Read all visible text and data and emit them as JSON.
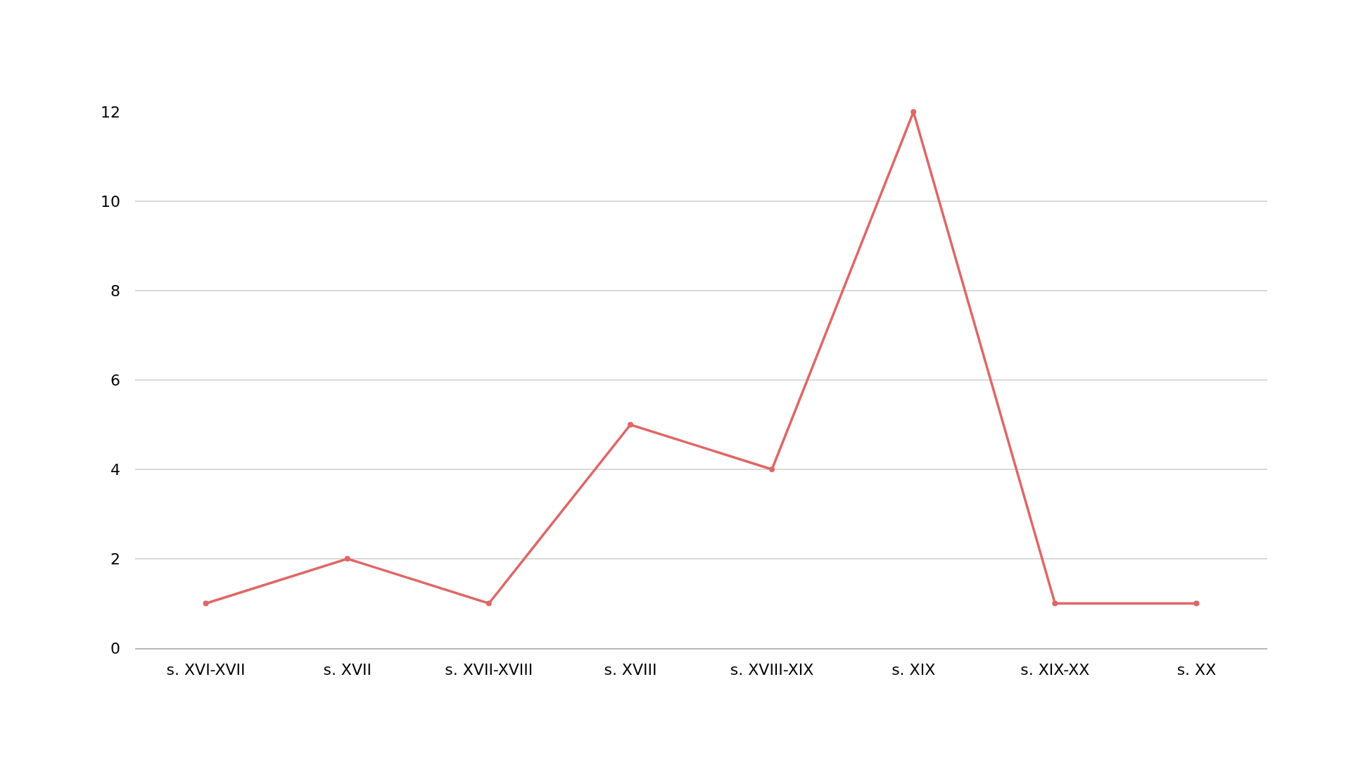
{
  "chart_data": {
    "type": "line",
    "categories": [
      "s. XVI-XVII",
      "s. XVII",
      "s. XVII-XVIII",
      "s. XVIII",
      "s. XVIII-XIX",
      "s. XIX",
      "s. XIX-XX",
      "s. XX"
    ],
    "series": [
      {
        "color": "#e06666",
        "values": [
          1,
          2,
          1,
          5,
          4,
          12,
          1,
          1
        ]
      }
    ],
    "ylim": [
      0,
      12
    ],
    "yticks": [
      0,
      2,
      4,
      6,
      8,
      10,
      12
    ],
    "grid": "y",
    "marker": "circle",
    "line_style": "solid"
  }
}
